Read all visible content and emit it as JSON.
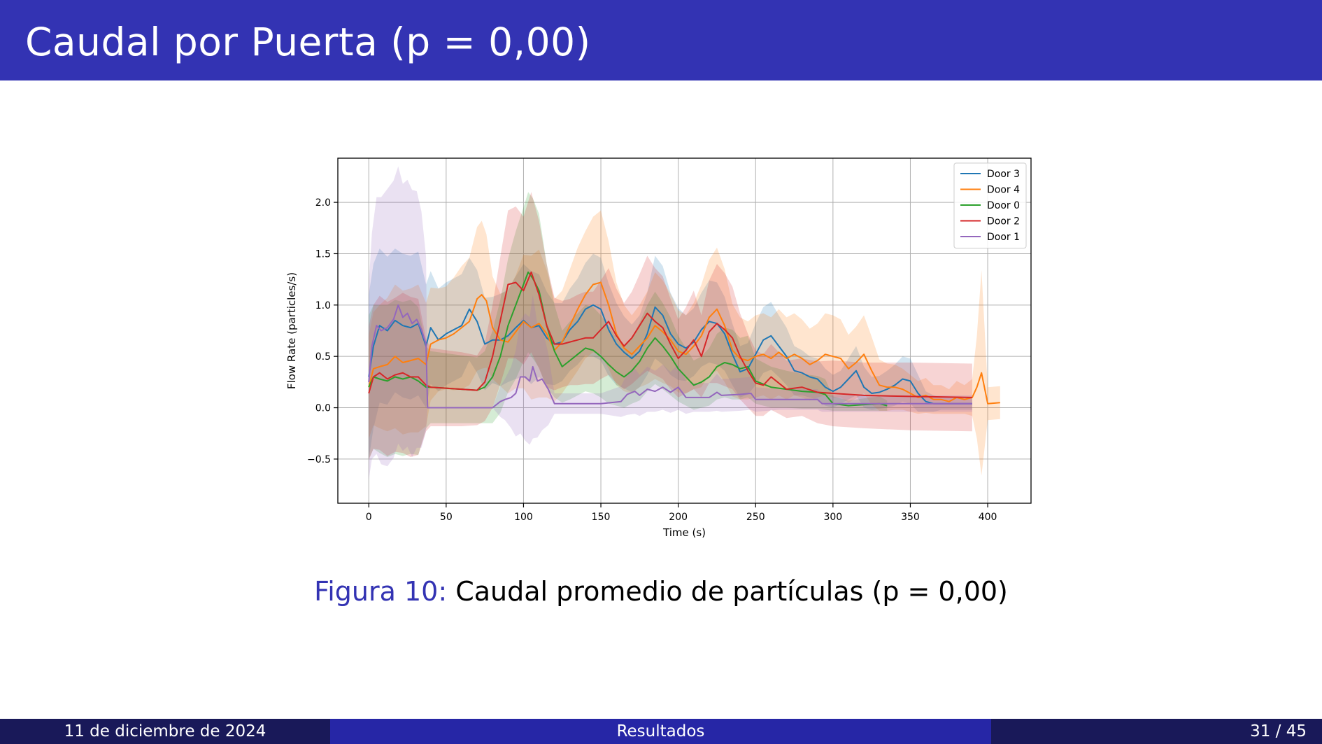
{
  "slide": {
    "title": "Caudal por Puerta (p = 0,00)",
    "caption_label": "Figura 10:",
    "caption_text": "Caudal promedio de partículas (p = 0,00)"
  },
  "footer": {
    "date": "11 de diciembre de 2024",
    "section": "Resultados",
    "page": "31 / 45"
  },
  "colors": {
    "title_bar": "#3333b3",
    "footer_dark": "#191959",
    "footer_mid": "#2626a6",
    "door3": "#1f77b4",
    "door4": "#ff7f0e",
    "door0": "#2ca02c",
    "door2": "#d62728",
    "door1": "#9467bd"
  },
  "chart_data": {
    "type": "line",
    "title": "",
    "xlabel": "Time (s)",
    "ylabel": "Flow Rate (particles/s)",
    "xlim": [
      -20,
      428
    ],
    "ylim": [
      -0.93,
      2.43
    ],
    "xticks": [
      0,
      50,
      100,
      150,
      200,
      250,
      300,
      350,
      400
    ],
    "yticks": [
      -0.5,
      0.0,
      0.5,
      1.0,
      1.5,
      2.0
    ],
    "ytick_labels": [
      "−0.5",
      "0.0",
      "0.5",
      "1.0",
      "1.5",
      "2.0"
    ],
    "grid": true,
    "legend_position": "top-right",
    "shaded_band": "mean ± std",
    "series": [
      {
        "name": "Door 3",
        "color": "#1f77b4",
        "x": [
          0,
          3,
          7,
          12,
          17,
          22,
          27,
          32,
          37,
          40,
          45,
          50,
          55,
          60,
          65,
          70,
          75,
          80,
          85,
          90,
          95,
          100,
          105,
          110,
          115,
          120,
          125,
          130,
          135,
          140,
          145,
          150,
          155,
          160,
          165,
          170,
          175,
          180,
          185,
          190,
          195,
          200,
          205,
          210,
          215,
          220,
          225,
          230,
          235,
          240,
          245,
          250,
          255,
          260,
          265,
          270,
          275,
          280,
          285,
          290,
          295,
          300,
          305,
          310,
          315,
          320,
          325,
          330,
          335,
          340,
          345,
          350,
          355,
          360,
          365,
          370,
          380,
          390
        ],
        "y": [
          0.3,
          0.6,
          0.8,
          0.75,
          0.85,
          0.8,
          0.78,
          0.82,
          0.6,
          0.78,
          0.66,
          0.72,
          0.76,
          0.8,
          0.96,
          0.84,
          0.62,
          0.66,
          0.66,
          0.7,
          0.78,
          0.85,
          0.78,
          0.8,
          0.68,
          0.62,
          0.64,
          0.76,
          0.84,
          0.96,
          1.0,
          0.96,
          0.76,
          0.62,
          0.54,
          0.48,
          0.55,
          0.72,
          0.98,
          0.9,
          0.72,
          0.62,
          0.58,
          0.64,
          0.76,
          0.84,
          0.82,
          0.72,
          0.52,
          0.35,
          0.38,
          0.52,
          0.66,
          0.7,
          0.6,
          0.5,
          0.36,
          0.34,
          0.3,
          0.28,
          0.2,
          0.16,
          0.2,
          0.28,
          0.36,
          0.2,
          0.14,
          0.15,
          0.18,
          0.22,
          0.28,
          0.26,
          0.14,
          0.06,
          0.04,
          0.04,
          0.04,
          0.04
        ],
        "std": [
          0.8,
          0.8,
          0.75,
          0.72,
          0.7,
          0.7,
          0.7,
          0.7,
          0.6,
          0.55,
          0.5,
          0.5,
          0.5,
          0.5,
          0.5,
          0.5,
          0.45,
          0.42,
          0.45,
          0.45,
          0.5,
          0.55,
          0.55,
          0.5,
          0.45,
          0.4,
          0.38,
          0.4,
          0.42,
          0.45,
          0.5,
          0.5,
          0.45,
          0.4,
          0.35,
          0.33,
          0.35,
          0.4,
          0.5,
          0.48,
          0.4,
          0.35,
          0.32,
          0.33,
          0.36,
          0.4,
          0.4,
          0.36,
          0.3,
          0.25,
          0.25,
          0.3,
          0.32,
          0.33,
          0.3,
          0.28,
          0.24,
          0.22,
          0.2,
          0.2,
          0.18,
          0.16,
          0.16,
          0.2,
          0.24,
          0.2,
          0.16,
          0.16,
          0.18,
          0.2,
          0.22,
          0.22,
          0.18,
          0.1,
          0.08,
          0.06,
          0.06,
          0.06
        ]
      },
      {
        "name": "Door 4",
        "color": "#ff7f0e",
        "x": [
          0,
          3,
          7,
          12,
          17,
          22,
          27,
          32,
          37,
          40,
          45,
          50,
          55,
          60,
          65,
          70,
          73,
          76,
          80,
          85,
          90,
          95,
          100,
          105,
          110,
          115,
          120,
          125,
          130,
          135,
          140,
          145,
          150,
          155,
          160,
          165,
          170,
          175,
          180,
          185,
          190,
          195,
          200,
          205,
          210,
          215,
          220,
          225,
          230,
          235,
          240,
          245,
          250,
          255,
          260,
          265,
          270,
          275,
          280,
          285,
          290,
          295,
          300,
          305,
          310,
          315,
          320,
          325,
          330,
          335,
          340,
          345,
          350,
          355,
          360,
          365,
          370,
          375,
          380,
          385,
          390,
          393,
          396,
          400,
          408
        ],
        "y": [
          0.2,
          0.38,
          0.4,
          0.42,
          0.5,
          0.44,
          0.46,
          0.48,
          0.42,
          0.62,
          0.66,
          0.68,
          0.72,
          0.78,
          0.84,
          1.06,
          1.1,
          1.04,
          0.78,
          0.66,
          0.64,
          0.74,
          0.84,
          0.78,
          0.82,
          0.72,
          0.56,
          0.64,
          0.8,
          0.96,
          1.1,
          1.2,
          1.22,
          1.0,
          0.72,
          0.58,
          0.52,
          0.6,
          0.68,
          0.8,
          0.74,
          0.66,
          0.55,
          0.52,
          0.6,
          0.7,
          0.88,
          0.96,
          0.8,
          0.56,
          0.48,
          0.46,
          0.5,
          0.52,
          0.48,
          0.54,
          0.48,
          0.52,
          0.48,
          0.42,
          0.46,
          0.52,
          0.5,
          0.48,
          0.38,
          0.44,
          0.52,
          0.36,
          0.22,
          0.2,
          0.2,
          0.18,
          0.14,
          0.1,
          0.12,
          0.08,
          0.08,
          0.06,
          0.1,
          0.08,
          0.1,
          0.2,
          0.34,
          0.04,
          0.05
        ],
        "std": [
          0.5,
          0.55,
          0.6,
          0.65,
          0.7,
          0.7,
          0.7,
          0.72,
          0.6,
          0.55,
          0.5,
          0.5,
          0.55,
          0.6,
          0.62,
          0.7,
          0.72,
          0.65,
          0.5,
          0.45,
          0.5,
          0.55,
          0.65,
          0.7,
          0.72,
          0.62,
          0.5,
          0.5,
          0.55,
          0.6,
          0.62,
          0.66,
          0.7,
          0.62,
          0.5,
          0.42,
          0.38,
          0.4,
          0.45,
          0.52,
          0.5,
          0.45,
          0.4,
          0.38,
          0.42,
          0.5,
          0.56,
          0.6,
          0.55,
          0.45,
          0.4,
          0.38,
          0.4,
          0.4,
          0.4,
          0.42,
          0.4,
          0.4,
          0.38,
          0.35,
          0.36,
          0.4,
          0.4,
          0.38,
          0.33,
          0.35,
          0.38,
          0.33,
          0.25,
          0.23,
          0.22,
          0.2,
          0.18,
          0.16,
          0.17,
          0.14,
          0.14,
          0.12,
          0.16,
          0.14,
          0.18,
          0.5,
          1.0,
          0.16,
          0.16
        ]
      },
      {
        "name": "Door 0",
        "color": "#2ca02c",
        "x": [
          0,
          3,
          7,
          12,
          17,
          22,
          27,
          32,
          37,
          40,
          60,
          70,
          75,
          80,
          85,
          90,
          95,
          100,
          103,
          106,
          110,
          115,
          120,
          125,
          130,
          135,
          140,
          145,
          150,
          155,
          160,
          165,
          170,
          175,
          180,
          185,
          190,
          195,
          200,
          205,
          210,
          215,
          220,
          225,
          230,
          235,
          240,
          245,
          250,
          260,
          270,
          280,
          290,
          295,
          300,
          305,
          310,
          320,
          330,
          335
        ],
        "y": [
          0.2,
          0.3,
          0.28,
          0.26,
          0.3,
          0.28,
          0.3,
          0.26,
          0.2,
          0.2,
          0.18,
          0.17,
          0.2,
          0.3,
          0.5,
          0.8,
          1.0,
          1.2,
          1.32,
          1.26,
          1.14,
          0.8,
          0.55,
          0.4,
          0.46,
          0.52,
          0.58,
          0.56,
          0.5,
          0.42,
          0.35,
          0.3,
          0.36,
          0.45,
          0.58,
          0.68,
          0.6,
          0.5,
          0.38,
          0.3,
          0.22,
          0.25,
          0.3,
          0.4,
          0.44,
          0.42,
          0.38,
          0.4,
          0.26,
          0.2,
          0.18,
          0.16,
          0.15,
          0.13,
          0.04,
          0.03,
          0.02,
          0.03,
          0.04,
          0.02
        ],
        "std": [
          0.7,
          0.7,
          0.72,
          0.74,
          0.75,
          0.75,
          0.75,
          0.72,
          0.4,
          0.35,
          0.33,
          0.32,
          0.35,
          0.45,
          0.55,
          0.65,
          0.72,
          0.75,
          0.78,
          0.78,
          0.75,
          0.6,
          0.45,
          0.35,
          0.38,
          0.4,
          0.42,
          0.42,
          0.4,
          0.38,
          0.33,
          0.3,
          0.32,
          0.38,
          0.42,
          0.45,
          0.42,
          0.38,
          0.32,
          0.28,
          0.24,
          0.25,
          0.28,
          0.32,
          0.34,
          0.34,
          0.3,
          0.3,
          0.22,
          0.2,
          0.18,
          0.17,
          0.16,
          0.15,
          0.07,
          0.06,
          0.05,
          0.06,
          0.07,
          0.05
        ]
      },
      {
        "name": "Door 2",
        "color": "#d62728",
        "x": [
          0,
          3,
          7,
          12,
          17,
          22,
          27,
          32,
          37,
          40,
          60,
          70,
          75,
          80,
          85,
          90,
          95,
          100,
          105,
          110,
          115,
          120,
          125,
          130,
          135,
          140,
          145,
          150,
          155,
          160,
          165,
          170,
          175,
          180,
          185,
          190,
          195,
          200,
          205,
          210,
          215,
          220,
          225,
          230,
          235,
          240,
          245,
          250,
          255,
          260,
          265,
          270,
          280,
          290,
          300,
          320,
          350,
          390
        ],
        "y": [
          0.14,
          0.3,
          0.34,
          0.28,
          0.32,
          0.34,
          0.3,
          0.3,
          0.22,
          0.2,
          0.18,
          0.17,
          0.25,
          0.5,
          0.85,
          1.2,
          1.22,
          1.14,
          1.32,
          1.1,
          0.8,
          0.62,
          0.62,
          0.64,
          0.66,
          0.68,
          0.68,
          0.76,
          0.84,
          0.7,
          0.6,
          0.68,
          0.8,
          0.92,
          0.84,
          0.78,
          0.62,
          0.48,
          0.56,
          0.66,
          0.5,
          0.74,
          0.82,
          0.76,
          0.68,
          0.5,
          0.36,
          0.24,
          0.22,
          0.3,
          0.24,
          0.18,
          0.2,
          0.15,
          0.14,
          0.12,
          0.11,
          0.1
        ],
        "std": [
          0.65,
          0.7,
          0.75,
          0.75,
          0.75,
          0.78,
          0.78,
          0.76,
          0.45,
          0.38,
          0.36,
          0.34,
          0.38,
          0.5,
          0.62,
          0.72,
          0.74,
          0.72,
          0.78,
          0.72,
          0.6,
          0.45,
          0.42,
          0.42,
          0.44,
          0.45,
          0.45,
          0.48,
          0.52,
          0.46,
          0.42,
          0.45,
          0.5,
          0.56,
          0.52,
          0.5,
          0.44,
          0.38,
          0.42,
          0.48,
          0.4,
          0.5,
          0.58,
          0.55,
          0.5,
          0.42,
          0.36,
          0.32,
          0.3,
          0.32,
          0.3,
          0.28,
          0.28,
          0.3,
          0.32,
          0.32,
          0.33,
          0.33
        ]
      },
      {
        "name": "Door 1",
        "color": "#9467bd",
        "x": [
          0,
          2,
          5,
          8,
          12,
          16,
          19,
          22,
          25,
          28,
          31,
          34,
          37,
          38,
          60,
          80,
          85,
          88,
          92,
          95,
          98,
          101,
          104,
          106,
          109,
          112,
          116,
          120,
          130,
          150,
          163,
          167,
          172,
          175,
          180,
          185,
          190,
          195,
          200,
          205,
          210,
          220,
          225,
          228,
          240,
          247,
          250,
          265,
          290,
          293,
          300,
          330,
          350,
          390
        ],
        "y": [
          0.25,
          0.6,
          0.8,
          0.75,
          0.78,
          0.86,
          1.0,
          0.88,
          0.92,
          0.82,
          0.86,
          0.76,
          0.62,
          0.0,
          0.0,
          0.0,
          0.06,
          0.08,
          0.1,
          0.14,
          0.3,
          0.3,
          0.26,
          0.4,
          0.26,
          0.28,
          0.18,
          0.04,
          0.04,
          0.04,
          0.06,
          0.13,
          0.16,
          0.12,
          0.18,
          0.16,
          0.2,
          0.15,
          0.2,
          0.1,
          0.1,
          0.1,
          0.15,
          0.12,
          0.13,
          0.14,
          0.08,
          0.08,
          0.08,
          0.04,
          0.04,
          0.04,
          0.04,
          0.04
        ],
        "std": [
          0.95,
          1.1,
          1.25,
          1.3,
          1.35,
          1.35,
          1.35,
          1.3,
          1.3,
          1.3,
          1.25,
          1.15,
          0.85,
          0.0,
          0.0,
          0.0,
          0.15,
          0.2,
          0.3,
          0.42,
          0.55,
          0.62,
          0.62,
          0.7,
          0.55,
          0.5,
          0.35,
          0.1,
          0.1,
          0.1,
          0.15,
          0.2,
          0.22,
          0.2,
          0.22,
          0.2,
          0.22,
          0.2,
          0.22,
          0.16,
          0.14,
          0.14,
          0.18,
          0.16,
          0.16,
          0.16,
          0.12,
          0.1,
          0.1,
          0.08,
          0.08,
          0.08,
          0.08,
          0.08
        ]
      }
    ]
  }
}
